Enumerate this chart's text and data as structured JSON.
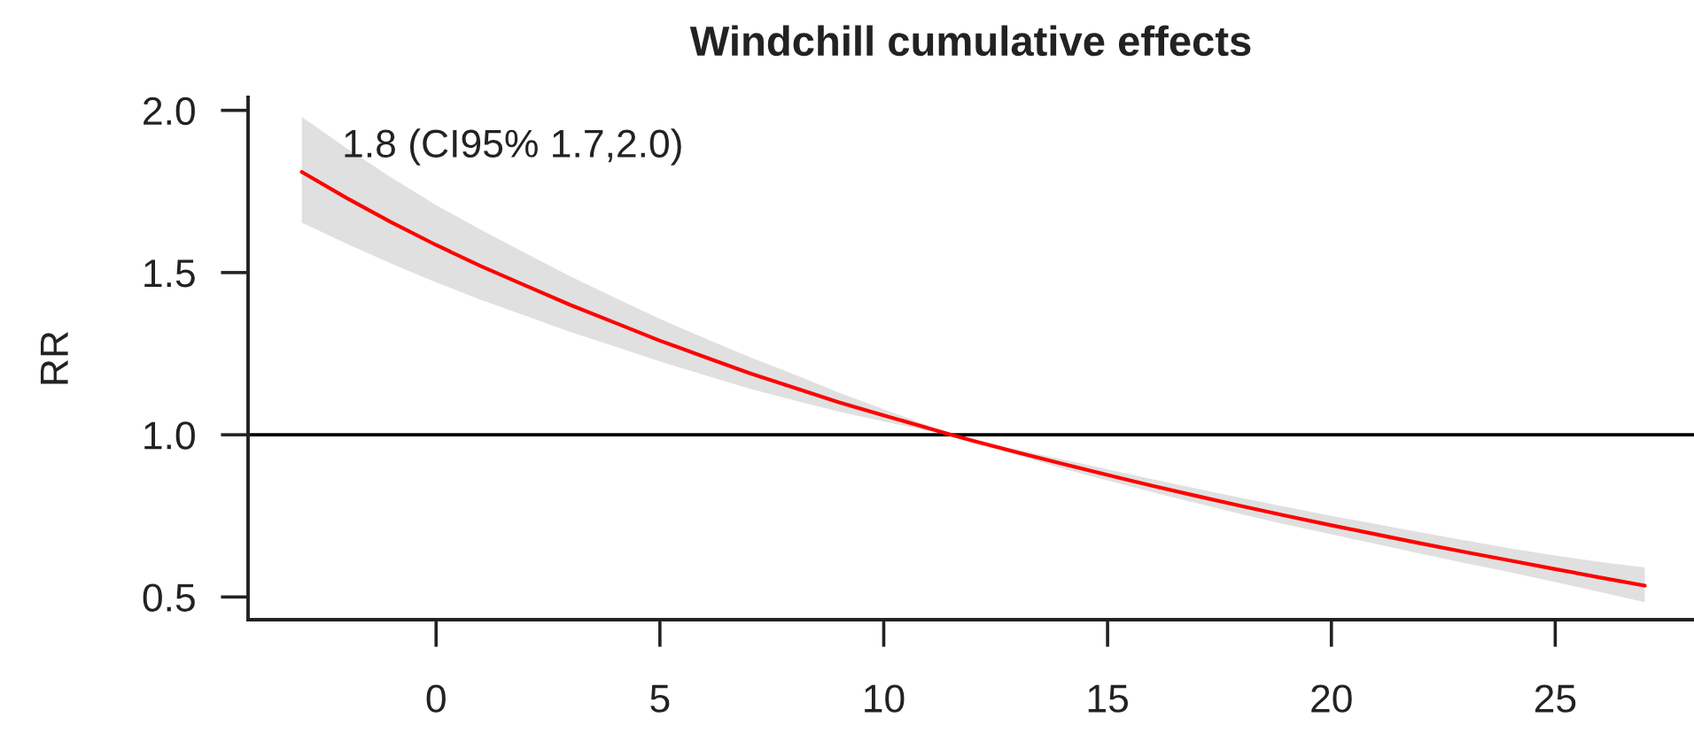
{
  "chart_data": {
    "type": "line",
    "title": "Windchill cumulative effects",
    "ylabel": "RR",
    "x": [
      -3,
      -2,
      -1,
      0,
      1,
      2,
      3,
      4,
      5,
      6,
      7,
      8,
      9,
      10,
      11,
      11.5,
      12,
      13,
      14,
      15,
      16,
      17,
      18,
      19,
      20,
      21,
      22,
      23,
      24,
      25,
      26,
      27
    ],
    "series": [
      {
        "color": "#ff0000",
        "values": [
          1.81,
          1.73,
          1.655,
          1.585,
          1.52,
          1.46,
          1.4,
          1.345,
          1.29,
          1.24,
          1.19,
          1.145,
          1.1,
          1.06,
          1.02,
          1.0,
          0.981,
          0.945,
          0.91,
          0.876,
          0.843,
          0.811,
          0.78,
          0.75,
          0.721,
          0.693,
          0.665,
          0.638,
          0.612,
          0.586,
          0.56,
          0.535
        ],
        "lower": [
          1.654,
          1.589,
          1.528,
          1.47,
          1.416,
          1.367,
          1.317,
          1.272,
          1.226,
          1.184,
          1.142,
          1.106,
          1.071,
          1.041,
          1.012,
          1.0,
          0.978,
          0.937,
          0.896,
          0.859,
          0.823,
          0.789,
          0.755,
          0.723,
          0.693,
          0.663,
          0.633,
          0.604,
          0.576,
          0.546,
          0.515,
          0.484
        ],
        "upper": [
          1.98,
          1.883,
          1.793,
          1.708,
          1.632,
          1.56,
          1.488,
          1.422,
          1.357,
          1.298,
          1.24,
          1.186,
          1.13,
          1.079,
          1.028,
          1.0,
          0.984,
          0.954,
          0.924,
          0.894,
          0.863,
          0.834,
          0.805,
          0.777,
          0.75,
          0.725,
          0.699,
          0.674,
          0.65,
          0.628,
          0.608,
          0.591
        ]
      }
    ],
    "xlim": [
      -4.2,
      28.1
    ],
    "ylim": [
      0.43,
      2.04
    ],
    "xticks": [
      0,
      5,
      10,
      15,
      20,
      25
    ],
    "yticks": [
      {
        "value": 0.5,
        "label": "0.5"
      },
      {
        "value": 1,
        "label": "1.0"
      },
      {
        "value": 1.5,
        "label": "1.5"
      },
      {
        "value": 2,
        "label": "2.0"
      }
    ],
    "ref_lines": [
      {
        "axis": "y",
        "value": 1,
        "color": "#000000"
      }
    ],
    "annotations": [
      "1.8 (CI95% 1.7,2.0)"
    ]
  }
}
